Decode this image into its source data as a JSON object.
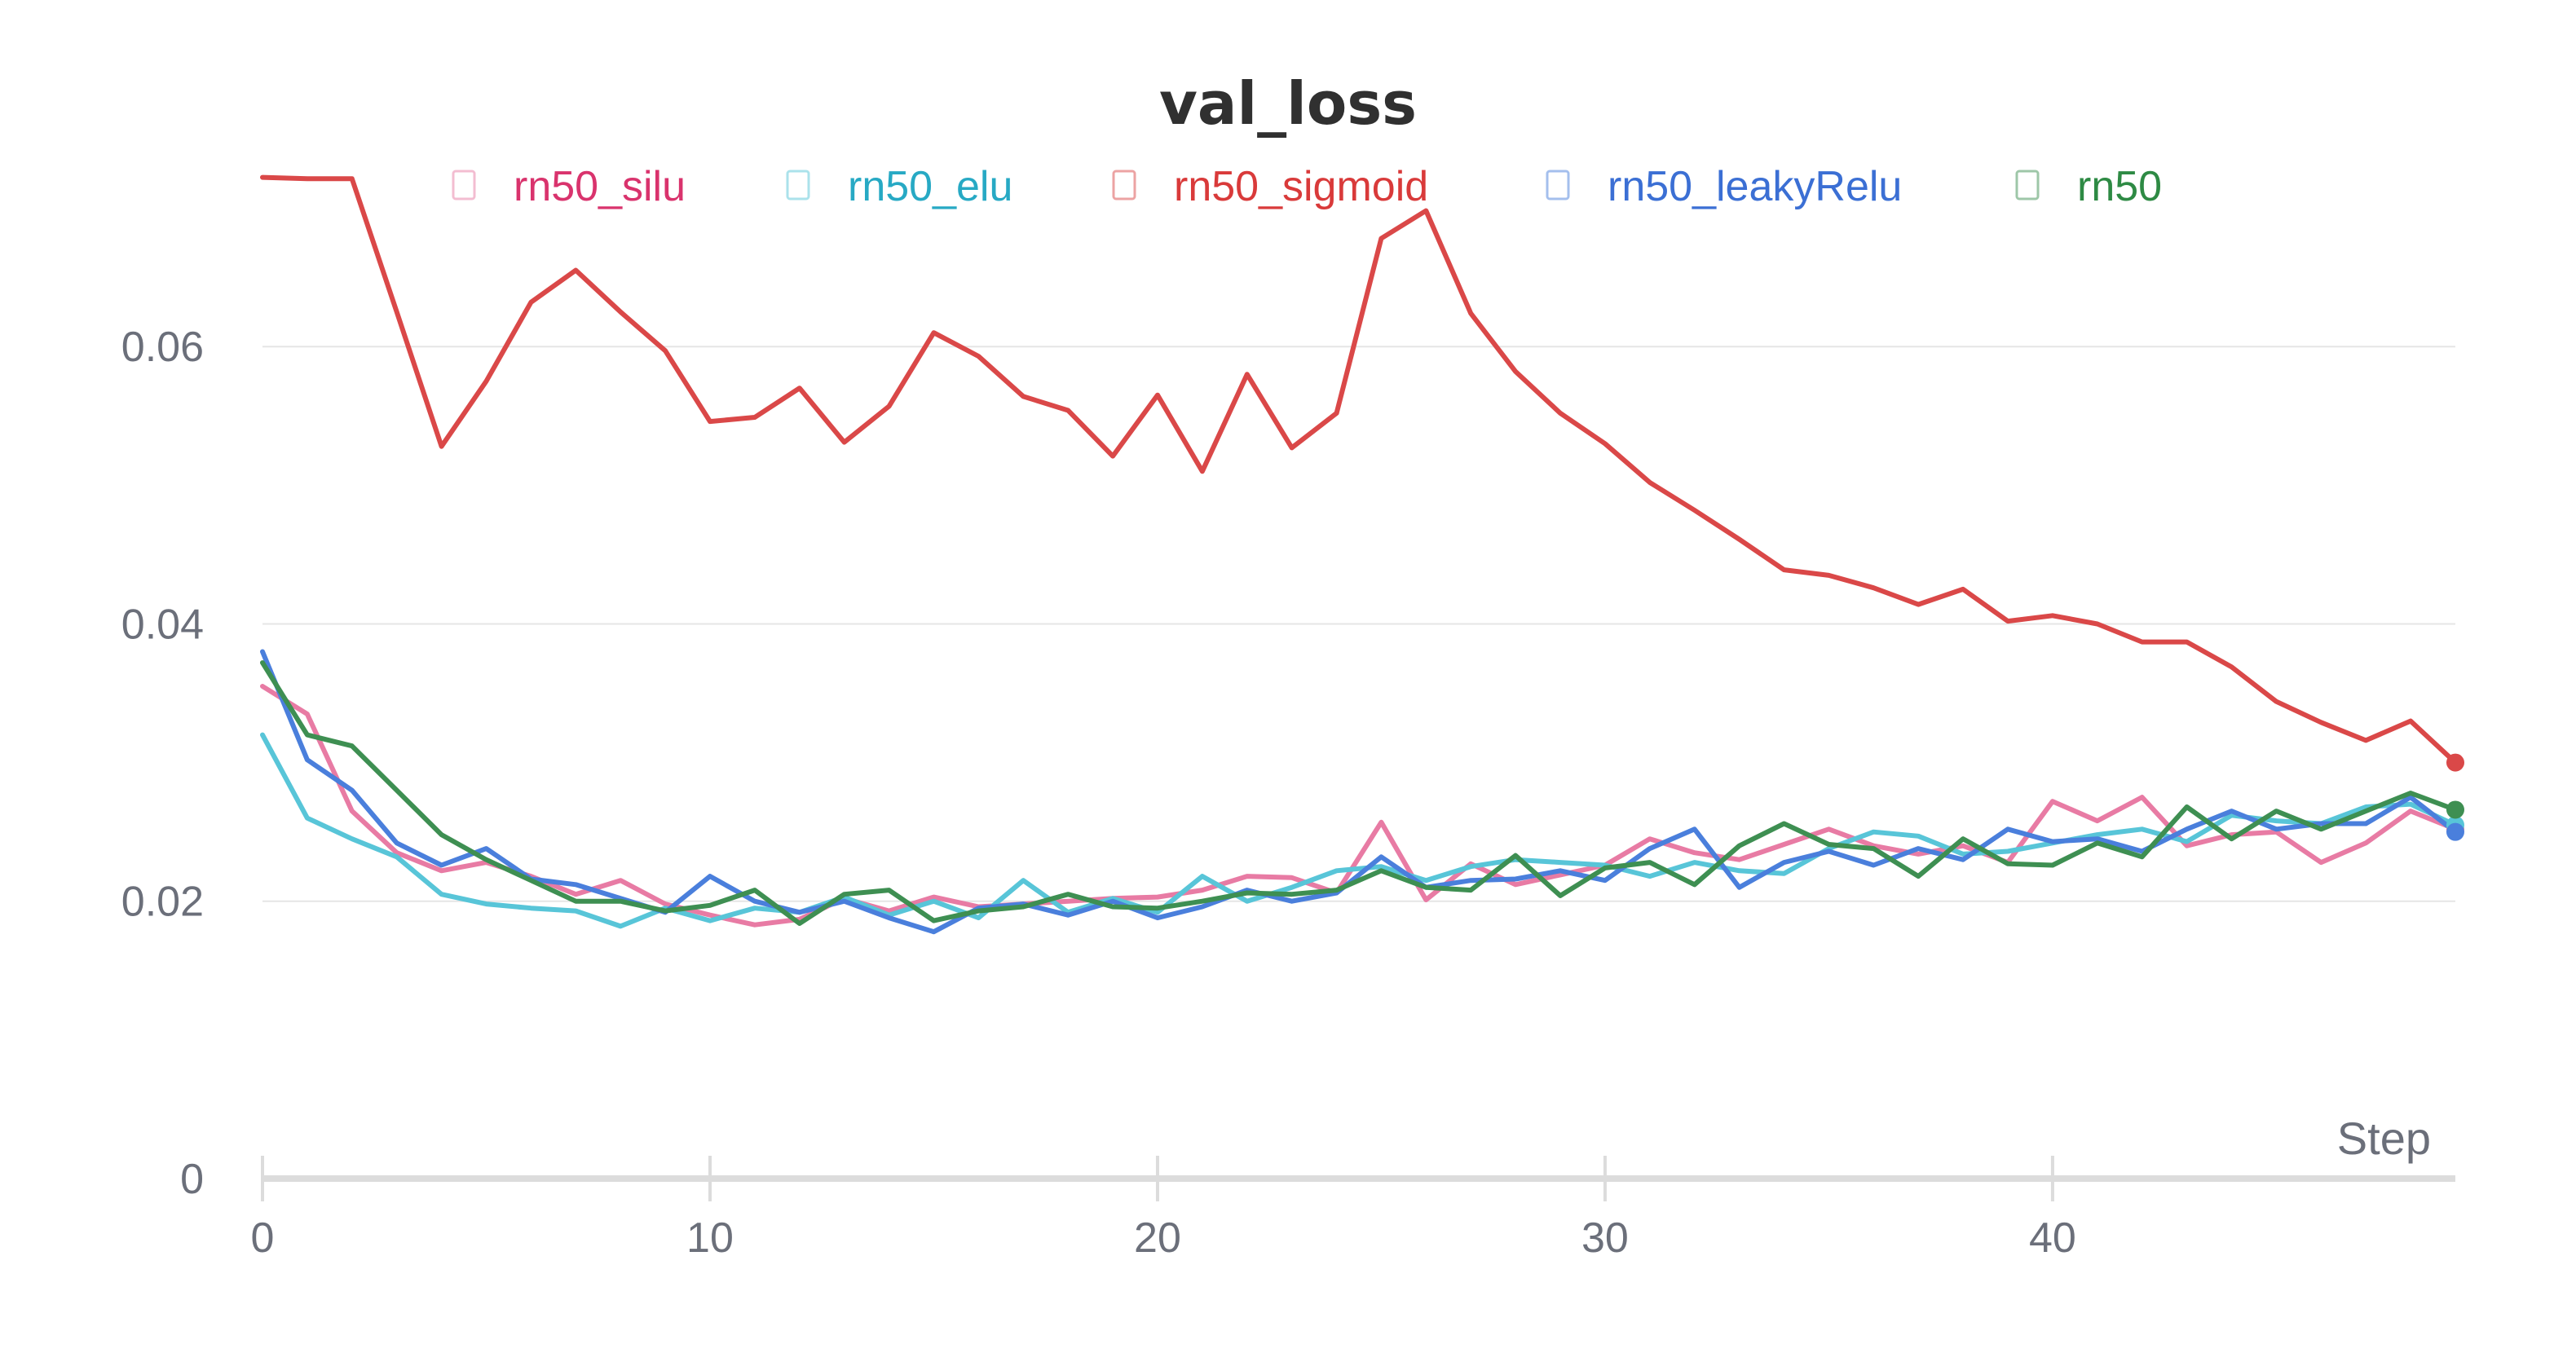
{
  "chart_data": {
    "type": "line",
    "title": "val_loss",
    "xlabel": "Step",
    "ylabel": "",
    "xlim": [
      0,
      49
    ],
    "ylim": [
      0,
      0.075
    ],
    "xticks": [
      0,
      10,
      20,
      30,
      40
    ],
    "xtick_labels": [
      "0",
      "10",
      "20",
      "30",
      "40"
    ],
    "yticks": [
      0,
      0.02,
      0.04,
      0.06
    ],
    "ytick_labels": [
      "0",
      "0.02",
      "0.04",
      "0.06"
    ],
    "grid": true,
    "legend_position": "top-center",
    "x": [
      0,
      1,
      2,
      3,
      4,
      5,
      6,
      7,
      8,
      9,
      10,
      11,
      12,
      13,
      14,
      15,
      16,
      17,
      18,
      19,
      20,
      21,
      22,
      23,
      24,
      25,
      26,
      27,
      28,
      29,
      30,
      31,
      32,
      33,
      34,
      35,
      36,
      37,
      38,
      39,
      40,
      41,
      42,
      43,
      44,
      45,
      46,
      47,
      48,
      49
    ],
    "series": [
      {
        "name": "rn50_silu",
        "color": "#e87ba4",
        "text_color": "#d9336d",
        "values": [
          0.0355,
          0.0335,
          0.0265,
          0.0235,
          0.0222,
          0.0228,
          0.0218,
          0.0205,
          0.0215,
          0.0198,
          0.019,
          0.0183,
          0.0187,
          0.0202,
          0.0193,
          0.0203,
          0.0196,
          0.0198,
          0.02,
          0.0202,
          0.0203,
          0.0208,
          0.0218,
          0.0217,
          0.0206,
          0.0257,
          0.0201,
          0.0227,
          0.0212,
          0.0219,
          0.0226,
          0.0245,
          0.0235,
          0.023,
          0.0241,
          0.0252,
          0.024,
          0.0234,
          0.024,
          0.0228,
          0.0272,
          0.0258,
          0.0275,
          0.024,
          0.0248,
          0.025,
          0.0228,
          0.0242,
          0.0265,
          0.0252
        ]
      },
      {
        "name": "rn50_elu",
        "color": "#58c5d8",
        "text_color": "#27a9c4",
        "values": [
          0.032,
          0.026,
          0.0245,
          0.0232,
          0.0205,
          0.0198,
          0.0195,
          0.0193,
          0.0182,
          0.0195,
          0.0186,
          0.0195,
          0.0192,
          0.0203,
          0.019,
          0.02,
          0.0188,
          0.0215,
          0.0192,
          0.0202,
          0.0192,
          0.0218,
          0.02,
          0.021,
          0.0222,
          0.0225,
          0.0215,
          0.0225,
          0.023,
          0.0228,
          0.0226,
          0.0218,
          0.0228,
          0.0222,
          0.022,
          0.0238,
          0.025,
          0.0247,
          0.0234,
          0.0236,
          0.0242,
          0.0248,
          0.0252,
          0.0243,
          0.0262,
          0.0258,
          0.0256,
          0.0268,
          0.027,
          0.0255
        ]
      },
      {
        "name": "rn50_sigmoid",
        "color": "#da4848",
        "text_color": "#d93a3a",
        "values": [
          0.0722,
          0.0721,
          0.0721,
          0.0625,
          0.0528,
          0.0575,
          0.0632,
          0.0655,
          0.0625,
          0.0597,
          0.0546,
          0.0549,
          0.057,
          0.0531,
          0.0557,
          0.061,
          0.0593,
          0.0564,
          0.0554,
          0.0521,
          0.0565,
          0.051,
          0.058,
          0.0527,
          0.0552,
          0.0678,
          0.0698,
          0.0624,
          0.0582,
          0.0552,
          0.053,
          0.0502,
          0.0482,
          0.0461,
          0.0439,
          0.0435,
          0.0426,
          0.0414,
          0.0425,
          0.0402,
          0.0406,
          0.04,
          0.0387,
          0.0387,
          0.0369,
          0.0344,
          0.0329,
          0.0316,
          0.033,
          0.03
        ]
      },
      {
        "name": "rn50_leakyRelu",
        "color": "#4a7fdc",
        "text_color": "#3b6fd4",
        "values": [
          0.038,
          0.0302,
          0.028,
          0.0242,
          0.0226,
          0.0238,
          0.0216,
          0.0212,
          0.0202,
          0.0192,
          0.0218,
          0.02,
          0.0192,
          0.02,
          0.0188,
          0.0178,
          0.0195,
          0.0198,
          0.019,
          0.02,
          0.0188,
          0.0196,
          0.0208,
          0.02,
          0.0206,
          0.0232,
          0.021,
          0.0215,
          0.0216,
          0.0222,
          0.0215,
          0.0238,
          0.0252,
          0.021,
          0.0228,
          0.0236,
          0.0226,
          0.0238,
          0.023,
          0.0252,
          0.0243,
          0.0245,
          0.0236,
          0.0252,
          0.0265,
          0.0252,
          0.0256,
          0.0256,
          0.0275,
          0.025
        ]
      },
      {
        "name": "rn50",
        "color": "#3e8f52",
        "text_color": "#2e8a44",
        "values": [
          0.0372,
          0.032,
          0.0312,
          0.028,
          0.0248,
          0.023,
          0.0215,
          0.02,
          0.02,
          0.0193,
          0.0197,
          0.0208,
          0.0184,
          0.0205,
          0.0208,
          0.0186,
          0.0193,
          0.0196,
          0.0205,
          0.0196,
          0.0195,
          0.02,
          0.0206,
          0.0205,
          0.0208,
          0.0222,
          0.021,
          0.0208,
          0.0233,
          0.0204,
          0.0224,
          0.0228,
          0.0212,
          0.024,
          0.0256,
          0.0241,
          0.0238,
          0.0218,
          0.0245,
          0.0227,
          0.0226,
          0.0242,
          0.0232,
          0.0268,
          0.0245,
          0.0265,
          0.0252,
          0.0265,
          0.0278,
          0.0266
        ]
      }
    ]
  }
}
